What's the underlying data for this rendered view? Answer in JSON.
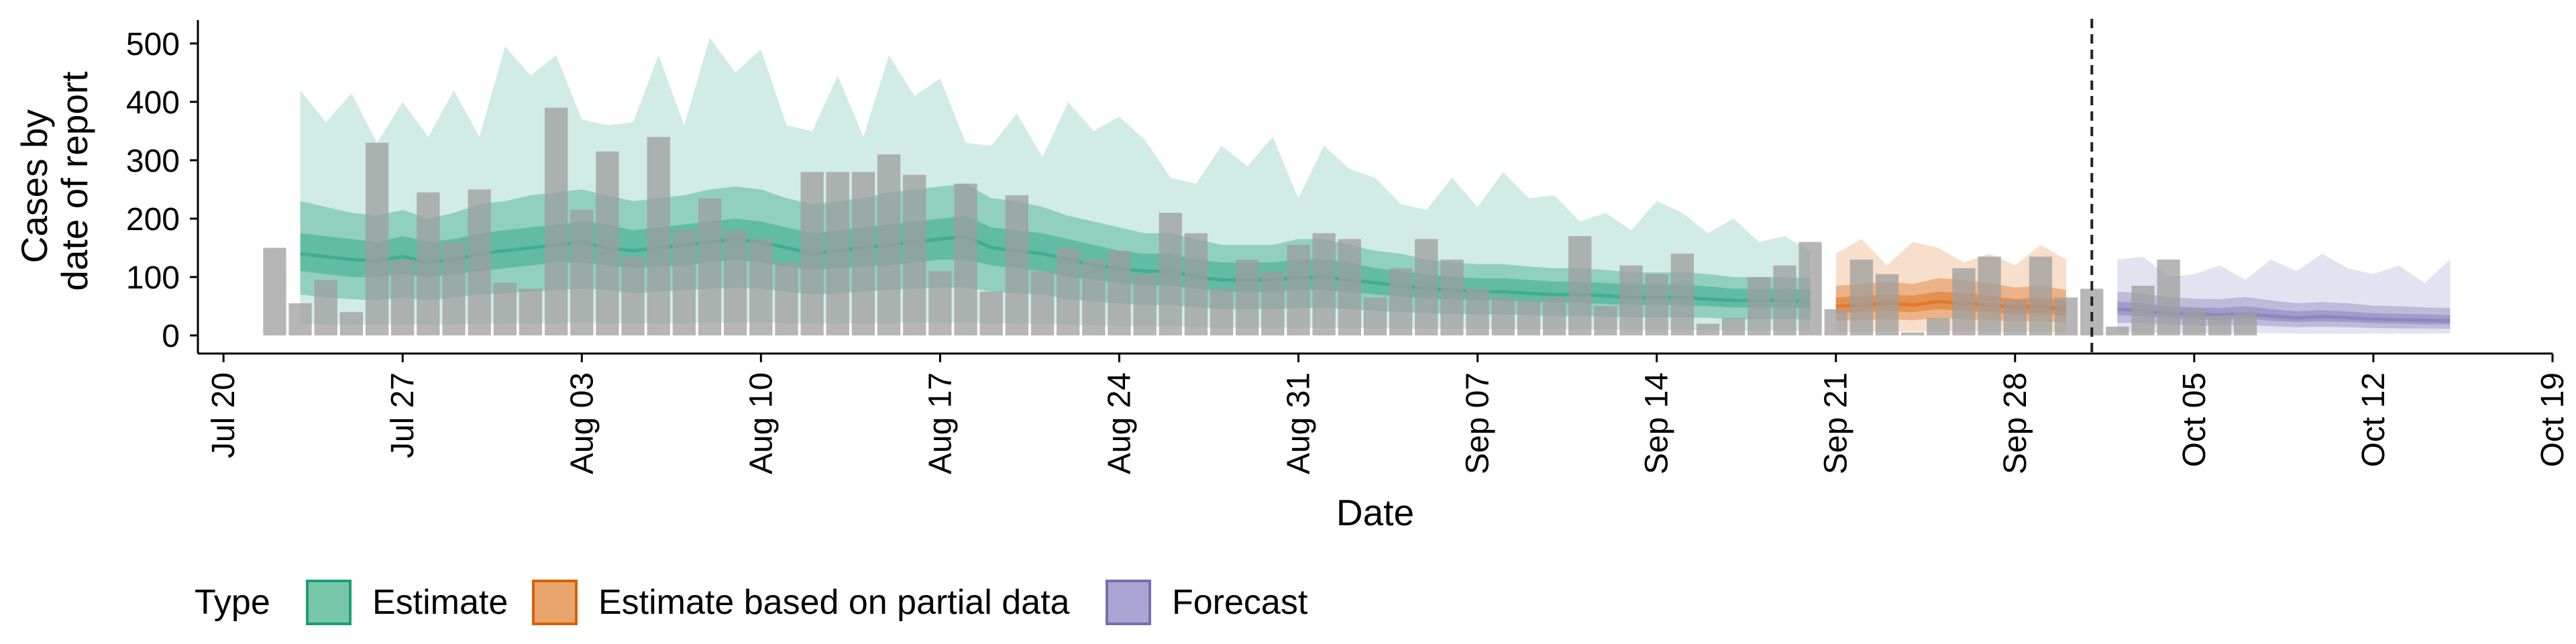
{
  "chart_data": {
    "type": "area",
    "xlabel": "Date",
    "ylabel_lines": [
      "Cases by",
      "date of report"
    ],
    "ylim": [
      0,
      540
    ],
    "yticks": [
      0,
      100,
      200,
      300,
      400,
      500
    ],
    "xlim": [
      "2020-07-19",
      "2020-10-19"
    ],
    "xticks": [
      "2020-07-20",
      "2020-07-27",
      "2020-08-03",
      "2020-08-10",
      "2020-08-17",
      "2020-08-24",
      "2020-08-31",
      "2020-09-07",
      "2020-09-14",
      "2020-09-21",
      "2020-09-28",
      "2020-10-05",
      "2020-10-12",
      "2020-10-19"
    ],
    "xtick_labels": [
      "Jul 20",
      "Jul 27",
      "Aug 03",
      "Aug 10",
      "Aug 17",
      "Aug 24",
      "Aug 31",
      "Sep 07",
      "Sep 14",
      "Sep 21",
      "Sep 28",
      "Oct 05",
      "Oct 12",
      "Oct 19"
    ],
    "forecast_start": "2020-10-01",
    "grid": false,
    "legend": {
      "title": "Type",
      "position": "bottom",
      "items": [
        {
          "label": "Estimate",
          "fill": "#77c7a8",
          "stroke": "#1b9e77"
        },
        {
          "label": "Estimate based on partial data",
          "fill": "#e9a46b",
          "stroke": "#d95f02"
        },
        {
          "label": "Forecast",
          "fill": "#aaa5d2",
          "stroke": "#7570b3"
        }
      ]
    },
    "bar_color": "#9e9e9e",
    "reported_cases": {
      "start": "2020-07-22",
      "values": [
        150,
        55,
        95,
        40,
        330,
        130,
        245,
        160,
        250,
        90,
        80,
        390,
        215,
        315,
        135,
        340,
        180,
        235,
        180,
        165,
        125,
        280,
        280,
        280,
        310,
        275,
        110,
        260,
        75,
        240,
        110,
        150,
        130,
        145,
        105,
        210,
        175,
        80,
        130,
        110,
        155,
        175,
        165,
        65,
        115,
        165,
        130,
        80,
        65,
        60,
        65,
        170,
        50,
        120,
        105,
        140,
        20,
        30,
        100,
        120,
        160,
        45,
        130,
        105,
        5,
        30,
        115,
        135,
        60,
        135,
        65,
        80,
        15,
        85,
        130,
        45,
        35,
        40
      ]
    },
    "series": [
      {
        "name": "Estimate",
        "start": "2020-07-23",
        "end": "2020-09-20",
        "color": "#1b9e77",
        "median": [
          140,
          135,
          130,
          128,
          135,
          125,
          130,
          140,
          145,
          150,
          155,
          160,
          150,
          145,
          150,
          155,
          160,
          165,
          160,
          150,
          140,
          145,
          150,
          155,
          160,
          165,
          170,
          150,
          145,
          140,
          130,
          120,
          115,
          110,
          110,
          100,
          95,
          95,
          95,
          100,
          100,
          95,
          90,
          85,
          80,
          78,
          75,
          75,
          72,
          70,
          70,
          68,
          65,
          65,
          65,
          62,
          60,
          60,
          60,
          58
        ],
        "lower50": [
          110,
          105,
          100,
          100,
          105,
          100,
          105,
          110,
          115,
          120,
          125,
          125,
          120,
          115,
          118,
          120,
          125,
          130,
          125,
          118,
          112,
          115,
          118,
          120,
          125,
          130,
          130,
          120,
          115,
          110,
          100,
          95,
          90,
          85,
          85,
          80,
          75,
          75,
          75,
          78,
          78,
          75,
          70,
          67,
          63,
          62,
          60,
          60,
          58,
          56,
          56,
          54,
          52,
          52,
          52,
          50,
          48,
          48,
          48,
          46
        ],
        "upper50": [
          175,
          170,
          165,
          160,
          170,
          160,
          165,
          175,
          180,
          185,
          190,
          195,
          190,
          180,
          185,
          190,
          195,
          200,
          195,
          185,
          175,
          180,
          185,
          190,
          195,
          200,
          205,
          185,
          180,
          175,
          165,
          155,
          145,
          140,
          140,
          130,
          125,
          125,
          125,
          130,
          130,
          125,
          115,
          110,
          105,
          100,
          98,
          98,
          95,
          92,
          92,
          90,
          87,
          87,
          87,
          84,
          80,
          80,
          80,
          78
        ],
        "lower90": [
          70,
          65,
          62,
          60,
          65,
          60,
          65,
          70,
          72,
          75,
          78,
          80,
          78,
          72,
          75,
          78,
          80,
          82,
          80,
          75,
          70,
          72,
          75,
          78,
          80,
          82,
          82,
          75,
          72,
          70,
          62,
          58,
          55,
          52,
          52,
          48,
          45,
          45,
          45,
          47,
          47,
          45,
          42,
          40,
          38,
          37,
          36,
          36,
          35,
          33,
          33,
          32,
          31,
          31,
          31,
          30,
          28,
          28,
          28,
          27
        ],
        "upper90": [
          230,
          220,
          210,
          205,
          215,
          200,
          210,
          225,
          230,
          240,
          245,
          250,
          240,
          230,
          235,
          240,
          250,
          255,
          250,
          235,
          225,
          230,
          235,
          245,
          250,
          255,
          260,
          235,
          230,
          220,
          205,
          195,
          185,
          175,
          175,
          165,
          155,
          155,
          155,
          165,
          165,
          155,
          145,
          140,
          130,
          125,
          122,
          122,
          118,
          115,
          115,
          112,
          108,
          108,
          108,
          105,
          100,
          100,
          100,
          98
        ],
        "lower_outer": [
          20,
          19,
          18,
          18,
          19,
          18,
          19,
          20,
          20,
          21,
          21,
          22,
          21,
          20,
          21,
          21,
          22,
          22,
          22,
          21,
          20,
          20,
          21,
          21,
          22,
          22,
          22,
          21,
          20,
          20,
          18,
          17,
          16,
          15,
          15,
          14,
          13,
          13,
          13,
          13,
          13,
          13,
          12,
          12,
          11,
          11,
          11,
          11,
          10,
          10,
          10,
          10,
          9,
          9,
          9,
          9,
          8,
          8,
          8,
          8
        ],
        "upper_outer": [
          420,
          365,
          415,
          330,
          400,
          340,
          420,
          340,
          495,
          445,
          480,
          370,
          360,
          365,
          480,
          360,
          510,
          450,
          490,
          360,
          350,
          445,
          340,
          480,
          410,
          440,
          330,
          325,
          380,
          305,
          400,
          350,
          375,
          335,
          270,
          260,
          325,
          290,
          340,
          235,
          325,
          285,
          270,
          225,
          215,
          270,
          220,
          280,
          235,
          240,
          195,
          210,
          180,
          230,
          210,
          175,
          200,
          160,
          170,
          145
        ]
      },
      {
        "name": "Estimate based on partial data",
        "start": "2020-09-21",
        "end": "2020-09-30",
        "color": "#d95f02",
        "median": [
          50,
          52,
          55,
          52,
          58,
          55,
          52,
          48,
          50,
          45
        ],
        "lower50": [
          38,
          40,
          42,
          40,
          45,
          42,
          40,
          36,
          38,
          34
        ],
        "upper50": [
          65,
          68,
          70,
          68,
          75,
          72,
          68,
          62,
          65,
          60
        ],
        "lower90": [
          25,
          26,
          28,
          26,
          30,
          28,
          26,
          24,
          25,
          22
        ],
        "upper90": [
          85,
          88,
          92,
          88,
          98,
          95,
          90,
          82,
          85,
          78
        ],
        "lower_outer": [
          6,
          6,
          7,
          6,
          7,
          7,
          6,
          6,
          6,
          5
        ],
        "upper_outer": [
          140,
          165,
          120,
          160,
          150,
          125,
          140,
          120,
          155,
          130
        ]
      },
      {
        "name": "Forecast",
        "start": "2020-10-02",
        "end": "2020-10-15",
        "color": "#7570b3",
        "median": [
          45,
          42,
          38,
          36,
          35,
          37,
          33,
          30,
          32,
          30,
          28,
          27,
          26,
          25
        ],
        "lower50": [
          35,
          33,
          29,
          27,
          27,
          29,
          25,
          23,
          24,
          23,
          21,
          20,
          19,
          19
        ],
        "upper50": [
          58,
          55,
          50,
          48,
          47,
          50,
          45,
          41,
          43,
          41,
          38,
          37,
          36,
          35
        ],
        "lower90": [
          22,
          21,
          18,
          17,
          17,
          18,
          16,
          14,
          15,
          14,
          13,
          12,
          12,
          11
        ],
        "upper90": [
          75,
          72,
          66,
          63,
          62,
          66,
          60,
          55,
          57,
          55,
          51,
          50,
          48,
          47
        ],
        "lower_outer": [
          5,
          5,
          4,
          4,
          4,
          4,
          4,
          3,
          3,
          3,
          3,
          3,
          3,
          3
        ],
        "upper_outer": [
          130,
          135,
          100,
          105,
          120,
          95,
          130,
          110,
          140,
          115,
          105,
          120,
          90,
          130
        ]
      }
    ]
  }
}
